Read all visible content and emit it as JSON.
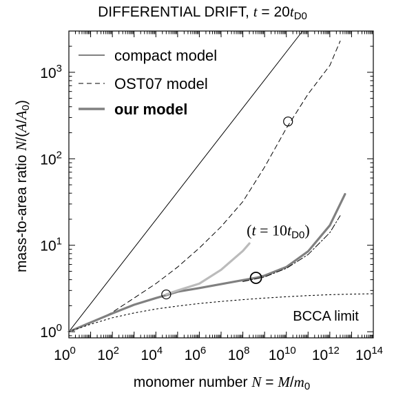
{
  "chart_data": {
    "type": "line",
    "title_main": "DIFFERENTIAL DRIFT, ",
    "title_var": "t",
    "title_eq": " = 20",
    "title_t": "t",
    "title_sub": "D0",
    "xlabel_main": "monomer number  ",
    "xlabel_var": "N",
    "xlabel_eq": " = ",
    "xlabel_M": "M",
    "xlabel_slash": "/",
    "xlabel_m": "m",
    "xlabel_sub": "0",
    "ylabel_main": "mass-to-area ratio  ",
    "ylabel_var": "N",
    "ylabel_paren": "/(",
    "ylabel_A": "A",
    "ylabel_slash": "/",
    "ylabel_A0": "A",
    "ylabel_sub": "0",
    "ylabel_close": ")",
    "x_scale": "log",
    "y_scale": "log",
    "xlim": [
      1,
      100000000000000.0
    ],
    "ylim": [
      0.85,
      3000
    ],
    "x_ticks": [
      {
        "value": 1,
        "base": "10",
        "exp": "0"
      },
      {
        "value": 100,
        "base": "10",
        "exp": "2"
      },
      {
        "value": 10000,
        "base": "10",
        "exp": "4"
      },
      {
        "value": 1000000,
        "base": "10",
        "exp": "6"
      },
      {
        "value": 100000000,
        "base": "10",
        "exp": "8"
      },
      {
        "value": 10000000000,
        "base": "10",
        "exp": "10"
      },
      {
        "value": 1000000000000,
        "base": "10",
        "exp": "12"
      },
      {
        "value": 100000000000000,
        "base": "10",
        "exp": "14"
      }
    ],
    "y_ticks": [
      {
        "value": 1,
        "base": "10",
        "exp": "0"
      },
      {
        "value": 10,
        "base": "10",
        "exp": "1"
      },
      {
        "value": 100,
        "base": "10",
        "exp": "2"
      },
      {
        "value": 1000,
        "base": "10",
        "exp": "3"
      }
    ],
    "legend_position": "top-left",
    "legend": [
      {
        "label": "compact model",
        "style": "solid-thin"
      },
      {
        "label": "OST07 model",
        "style": "dashed"
      },
      {
        "label": "our model",
        "style": "solid-thick-gray"
      }
    ],
    "series": [
      {
        "name": "compact model",
        "color": "#000000",
        "points": [
          [
            1,
            1
          ],
          [
            56000000000.0,
            3000
          ]
        ]
      },
      {
        "name": "OST07 model",
        "color": "#000000",
        "points": [
          [
            1,
            1
          ],
          [
            10,
            1.25
          ],
          [
            100,
            1.68
          ],
          [
            1000,
            2.45
          ],
          [
            10000,
            3.6
          ],
          [
            100000,
            5.6
          ],
          [
            1000000,
            9.3
          ],
          [
            10000000,
            16.4
          ],
          [
            100000000,
            32
          ],
          [
            1000000000,
            80
          ],
          [
            10000000000,
            225
          ],
          [
            100000000000,
            560
          ],
          [
            1000000000000,
            1200
          ],
          [
            3000000000000,
            2300
          ]
        ]
      },
      {
        "name": "our model",
        "color": "#808080",
        "points": [
          [
            1,
            1
          ],
          [
            10,
            1.28
          ],
          [
            100,
            1.63
          ],
          [
            1000,
            2.05
          ],
          [
            10000,
            2.45
          ],
          [
            30000,
            2.65
          ],
          [
            100000,
            2.9
          ],
          [
            1000000,
            3.2
          ],
          [
            10000000,
            3.55
          ],
          [
            100000000,
            3.95
          ],
          [
            400000000,
            4.2
          ],
          [
            1000000000,
            4.45
          ],
          [
            10000000000,
            5.6
          ],
          [
            100000000000,
            8.5
          ],
          [
            1000000000000,
            17
          ],
          [
            5000000000000,
            39
          ]
        ]
      },
      {
        "name": "our model (t = 10 tD0)",
        "color": "#bbbbbb",
        "points": [
          [
            30000,
            2.7
          ],
          [
            100000,
            3.0
          ],
          [
            1000000,
            3.6
          ],
          [
            10000000,
            5.2
          ],
          [
            100000000,
            8.6
          ],
          [
            200000000,
            10.5
          ]
        ]
      },
      {
        "name": "dash-dot",
        "color": "#000000",
        "points": [
          [
            100000000,
            3.8
          ],
          [
            1000000000,
            4.3
          ],
          [
            10000000000,
            5.4
          ],
          [
            100000000000,
            7.8
          ],
          [
            1000000000000,
            14
          ],
          [
            3000000000000,
            22
          ]
        ]
      },
      {
        "name": "BCCA limit",
        "color": "#000000",
        "points": [
          [
            1,
            1
          ],
          [
            10,
            1.22
          ],
          [
            100,
            1.45
          ],
          [
            1000,
            1.65
          ],
          [
            10000,
            1.83
          ],
          [
            100000,
            1.98
          ],
          [
            1000000,
            2.12
          ],
          [
            10000000,
            2.24
          ],
          [
            100000000,
            2.35
          ],
          [
            1000000000,
            2.45
          ],
          [
            10000000000,
            2.54
          ],
          [
            100000000000,
            2.62
          ],
          [
            1000000000000,
            2.68
          ],
          [
            10000000000000,
            2.72
          ],
          [
            100000000000000,
            2.75
          ]
        ]
      }
    ],
    "markers": [
      {
        "x": 30000,
        "y": 2.7,
        "size": "small"
      },
      {
        "x": 400000000,
        "y": 4.2,
        "size": "large"
      },
      {
        "x": 12000000000,
        "y": 270,
        "size": "small"
      }
    ],
    "annotations": [
      {
        "id": "bcca",
        "text": "BCCA limit",
        "x": 60000000000.0,
        "y": 1.5
      },
      {
        "id": "t10",
        "paren_open": "(",
        "var": "t",
        "eq": " = 10",
        "t": "t",
        "sub": "D0",
        "paren_close": ")",
        "x": 130000000.0,
        "y": 14.5
      }
    ]
  }
}
